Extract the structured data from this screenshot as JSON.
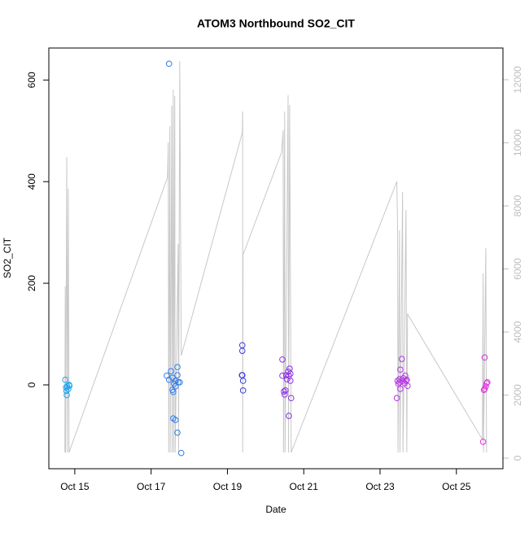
{
  "chart_data": {
    "type": "scatter",
    "title": "ATOM3 Northbound SO2_CIT",
    "xlabel": "Date",
    "ylabel": "SO2_CIT",
    "xlim": [
      14.32,
      26.22
    ],
    "xticks": [
      {
        "value": 15,
        "label": "Oct 15"
      },
      {
        "value": 17,
        "label": "Oct 17"
      },
      {
        "value": 19,
        "label": "Oct 19"
      },
      {
        "value": 21,
        "label": "Oct 21"
      },
      {
        "value": 23,
        "label": "Oct 23"
      },
      {
        "value": 25,
        "label": "Oct 25"
      }
    ],
    "ylim": [
      -165,
      663
    ],
    "yticks": [
      0,
      200,
      400,
      600
    ],
    "y2lim": [
      -335,
      13006
    ],
    "y2ticks": [
      0,
      2000,
      4000,
      6000,
      8000,
      10000,
      12000
    ],
    "y2color": "#bebebe",
    "series": [
      {
        "type": "scatter",
        "x": [
          14.75,
          14.77,
          14.78,
          14.79,
          14.8,
          14.83,
          14.85,
          14.86,
          17.47,
          17.41,
          17.47,
          17.52,
          17.56,
          17.58,
          17.56,
          17.6,
          17.64,
          17.64,
          17.69,
          17.69,
          17.71,
          17.75,
          17.58,
          17.64,
          17.69,
          17.79,
          19.39,
          19.39,
          19.38,
          19.39,
          19.41,
          19.41,
          20.44,
          20.44,
          20.48,
          20.5,
          20.52,
          20.54,
          20.56,
          20.59,
          20.61,
          20.63,
          20.65,
          20.67,
          20.61,
          20.65,
          23.44,
          23.46,
          23.48,
          23.51,
          23.53,
          23.53,
          23.57,
          23.59,
          23.61,
          23.64,
          23.66,
          23.68,
          23.7,
          23.72,
          23.51,
          25.74,
          25.7,
          25.72,
          25.77,
          25.79,
          25.81,
          25.74
        ],
        "values": [
          10,
          -5,
          -12,
          -20,
          -3,
          -8,
          0,
          -2,
          632,
          18,
          10,
          27,
          14,
          -14,
          -10,
          2,
          8,
          -3,
          35,
          19,
          5,
          5,
          -66,
          -69,
          -94,
          -134,
          78,
          67,
          19,
          19,
          8,
          -11,
          50,
          18,
          -13,
          -19,
          -11,
          19,
          11,
          26,
          18,
          32,
          22,
          -26,
          -61,
          8,
          -26,
          8,
          2,
          5,
          30,
          -8,
          51,
          8,
          13,
          3,
          18,
          8,
          10,
          -2,
          11,
          54,
          -112,
          -10,
          -3,
          3,
          5,
          -8
        ],
        "colors": [
          "#1fa3ee",
          "#1fa3ee",
          "#1fa3ee",
          "#1fa3ee",
          "#1fa3ee",
          "#1fa3ee",
          "#1fa3ee",
          "#1fa3ee",
          "#2f7ef0",
          "#2f7ef0",
          "#2f7ef0",
          "#2f7ef0",
          "#2f7ef0",
          "#2f7ef0",
          "#2f7ef0",
          "#2f7ef0",
          "#2f7ef0",
          "#2f7ef0",
          "#2f7ef0",
          "#2f7ef0",
          "#2f7ef0",
          "#2f7ef0",
          "#2f7ef0",
          "#2f7ef0",
          "#2f7ef0",
          "#2f7ef0",
          "#3b3be0",
          "#3b3be0",
          "#3b3be0",
          "#3b3be0",
          "#3b3be0",
          "#3b3be0",
          "#8b30e6",
          "#8b30e6",
          "#8b30e6",
          "#8b30e6",
          "#8b30e6",
          "#8b30e6",
          "#8b30e6",
          "#8b30e6",
          "#8b30e6",
          "#8b30e6",
          "#8b30e6",
          "#8b30e6",
          "#8b30e6",
          "#8b30e6",
          "#b430e6",
          "#b430e6",
          "#b430e6",
          "#b430e6",
          "#b430e6",
          "#b430e6",
          "#b430e6",
          "#b430e6",
          "#b430e6",
          "#b430e6",
          "#b430e6",
          "#b430e6",
          "#b430e6",
          "#b430e6",
          "#b430e6",
          "#e030e0",
          "#e030e0",
          "#e030e0",
          "#e030e0",
          "#e030e0",
          "#e030e0",
          "#e030e0"
        ]
      },
      {
        "type": "line",
        "axis": "y2",
        "color": "#c8c8c8",
        "x": [
          14.74,
          14.75,
          14.76,
          14.79,
          14.81,
          14.83,
          14.85,
          17.43,
          17.45,
          17.46,
          17.49,
          17.5,
          17.54,
          17.55,
          17.58,
          17.59,
          17.62,
          17.63,
          17.71,
          17.72,
          17.75,
          17.79,
          19.39,
          19.4,
          19.4,
          19.41,
          20.42,
          20.46,
          20.47,
          20.5,
          20.51,
          20.59,
          20.6,
          20.63,
          20.67,
          23.44,
          23.46,
          23.47,
          23.51,
          23.52,
          23.59,
          23.6,
          23.68,
          23.7,
          23.72,
          25.68,
          25.7,
          25.71,
          25.77,
          25.79
        ],
        "values": [
          180,
          5445,
          180,
          9548,
          180,
          8542,
          180,
          8903,
          10013,
          180,
          10529,
          180,
          11174,
          180,
          11690,
          180,
          11484,
          180,
          6787,
          180,
          12594,
          3252,
          10323,
          10994,
          180,
          6452,
          9703,
          10400,
          180,
          10994,
          180,
          11510,
          180,
          11200,
          180,
          8774,
          7226,
          180,
          7226,
          180,
          8439,
          180,
          7871,
          180,
          4568,
          594,
          5858,
          180,
          6658,
          180
        ]
      }
    ]
  }
}
